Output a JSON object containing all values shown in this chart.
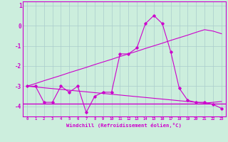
{
  "xlabel": "Windchill (Refroidissement éolien,°C)",
  "background_color": "#cceedd",
  "line_color": "#cc00cc",
  "grid_color": "#aacccc",
  "x": [
    0,
    1,
    2,
    3,
    4,
    5,
    6,
    7,
    8,
    9,
    10,
    11,
    12,
    13,
    14,
    15,
    16,
    17,
    18,
    19,
    20,
    21,
    22,
    23
  ],
  "y_main": [
    -3.0,
    -3.0,
    -3.8,
    -3.8,
    -3.0,
    -3.3,
    -3.0,
    -4.3,
    -3.5,
    -3.3,
    -3.3,
    -1.4,
    -1.4,
    -1.1,
    0.1,
    0.5,
    0.1,
    -1.3,
    -3.1,
    -3.7,
    -3.8,
    -3.8,
    -3.9,
    -4.1
  ],
  "y_diag_up": [
    -3.0,
    -2.87,
    -2.73,
    -2.6,
    -2.47,
    -2.33,
    -2.2,
    -2.07,
    -1.93,
    -1.8,
    -1.67,
    -1.53,
    -1.4,
    -1.27,
    -1.13,
    -1.0,
    -0.87,
    -0.73,
    -0.6,
    -0.47,
    -0.33,
    -0.2,
    -0.27,
    -0.4
  ],
  "y_diag_down": [
    -3.0,
    -3.04,
    -3.08,
    -3.12,
    -3.16,
    -3.2,
    -3.24,
    -3.28,
    -3.32,
    -3.36,
    -3.4,
    -3.44,
    -3.48,
    -3.52,
    -3.56,
    -3.6,
    -3.64,
    -3.68,
    -3.72,
    -3.76,
    -3.8,
    -3.84,
    -3.8,
    -3.76
  ],
  "y_flat": -3.88,
  "ylim": [
    -4.5,
    1.2
  ],
  "yticks": [
    1,
    0,
    -1,
    -2,
    -3,
    -4
  ],
  "xlim": [
    -0.5,
    23.5
  ]
}
